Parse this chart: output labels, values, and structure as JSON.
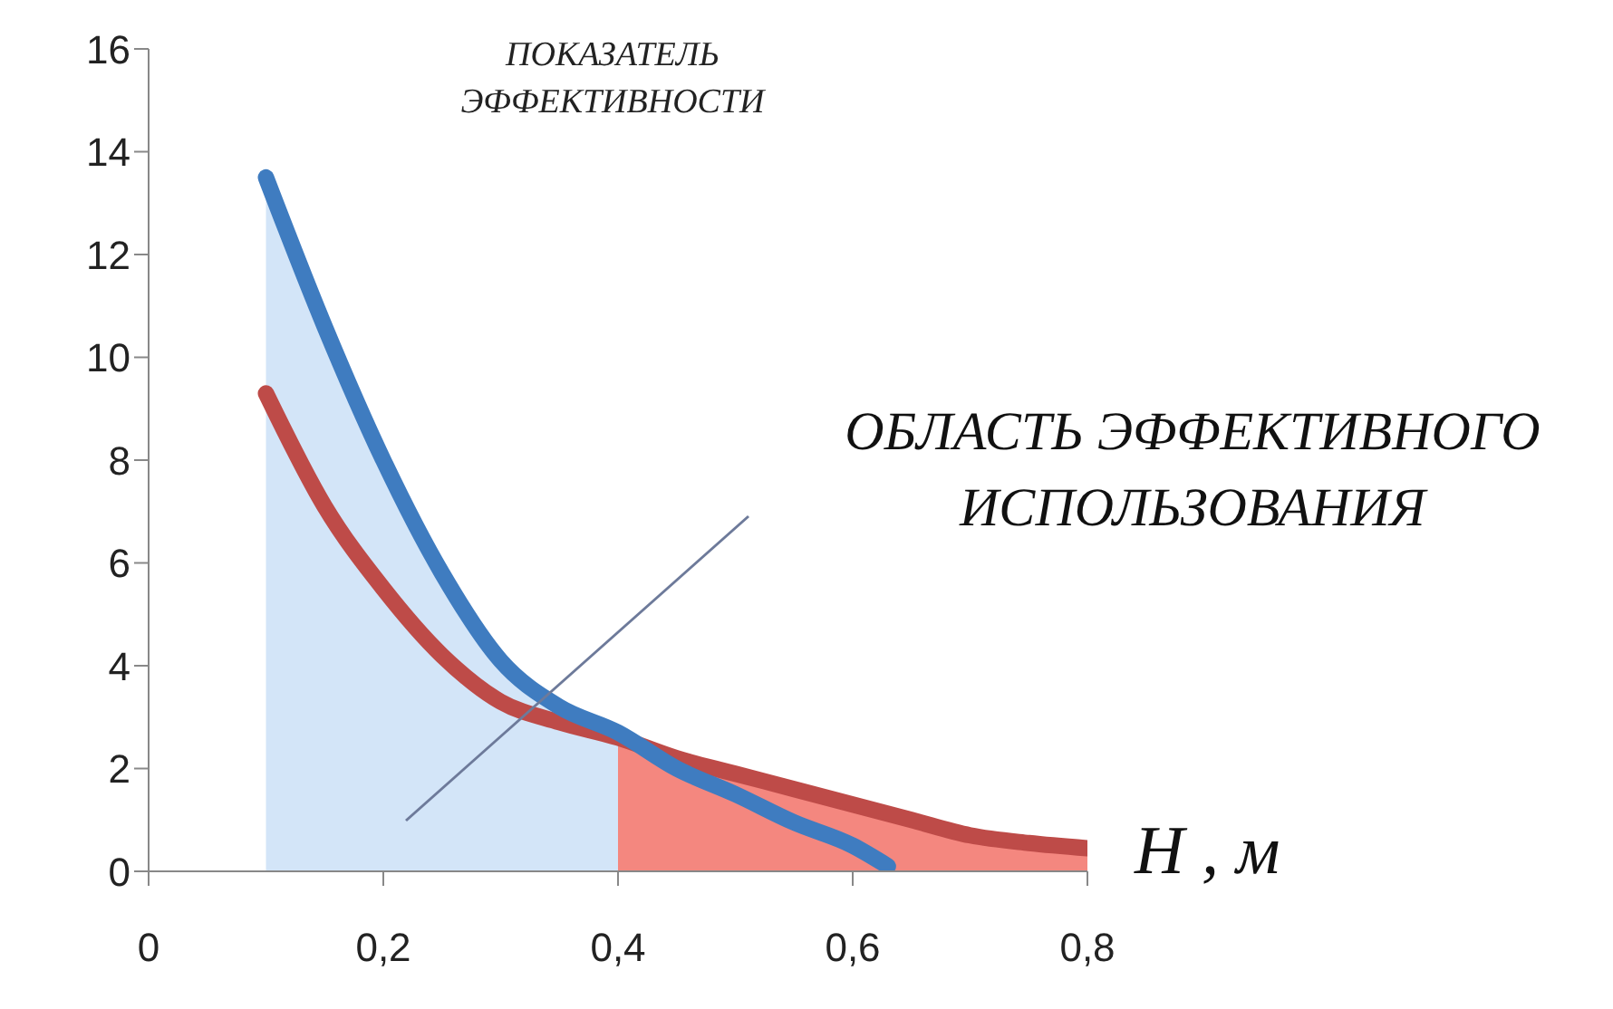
{
  "chart_data": {
    "type": "line",
    "ylabel": "ПОКАЗАТЕЛЬ ЭФФЕКТИВНОСТИ",
    "xlabel": "H , м",
    "annotations": [
      "ОБЛАСТЬ ЭФФЕКТИВНОГО ИСПОЛЬЗОВАНИЯ"
    ],
    "series": [
      {
        "type": "area",
        "color": "#d3e5f8",
        "x": [
          0.1,
          0.15,
          0.2,
          0.25,
          0.3,
          0.35,
          0.4
        ],
        "values": [
          13.5,
          10.6,
          8.0,
          5.8,
          4.1,
          3.2,
          2.7
        ]
      },
      {
        "type": "area",
        "color": "#f4877f",
        "x": [
          0.4,
          0.45,
          0.5,
          0.55,
          0.6,
          0.65,
          0.7,
          0.75,
          0.8
        ],
        "values": [
          2.6,
          2.2,
          1.9,
          1.6,
          1.3,
          1.0,
          0.7,
          0.55,
          0.45
        ]
      },
      {
        "color": "#be4b48",
        "x": [
          0.1,
          0.15,
          0.2,
          0.25,
          0.3,
          0.35,
          0.4,
          0.45,
          0.5,
          0.55,
          0.6,
          0.65,
          0.7,
          0.75,
          0.8
        ],
        "values": [
          9.3,
          7.1,
          5.5,
          4.2,
          3.3,
          2.9,
          2.6,
          2.2,
          1.9,
          1.6,
          1.3,
          1.0,
          0.7,
          0.55,
          0.45
        ]
      },
      {
        "color": "#3f7cc0",
        "x": [
          0.1,
          0.15,
          0.2,
          0.25,
          0.3,
          0.35,
          0.4,
          0.45,
          0.5,
          0.55,
          0.6,
          0.63
        ],
        "values": [
          13.5,
          10.6,
          8.0,
          5.8,
          4.1,
          3.2,
          2.7,
          2.0,
          1.5,
          0.95,
          0.5,
          0.1
        ]
      }
    ],
    "xlim": [
      0,
      0.8
    ],
    "xticks": [
      0,
      {
        "value": 0.2,
        "label": "0,2"
      },
      {
        "value": 0.4,
        "label": "0,4"
      },
      {
        "value": 0.6,
        "label": "0,6"
      },
      {
        "value": 0.8,
        "label": "0,8"
      }
    ],
    "ylim": [
      0,
      16
    ],
    "yticks": [
      0,
      2,
      4,
      6,
      8,
      10,
      12,
      14,
      16
    ],
    "grid": false,
    "legend": false,
    "marker": "none",
    "line_style": "solid"
  }
}
